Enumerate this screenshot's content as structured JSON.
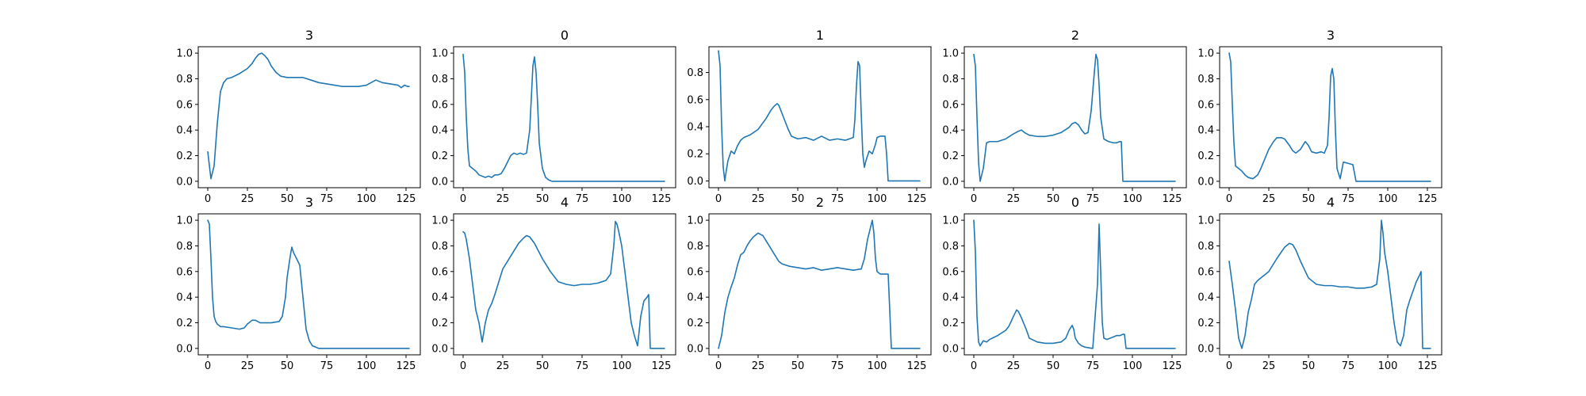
{
  "figure": {
    "background": "#ffffff",
    "line_color": "#1f77b4"
  },
  "chart_data": [
    {
      "type": "line",
      "title": "3",
      "xlim": [
        -6,
        134
      ],
      "ylim": [
        -0.05,
        1.05
      ],
      "xticks": [
        0,
        25,
        50,
        75,
        100,
        125
      ],
      "yticks": [
        0.0,
        0.2,
        0.4,
        0.6,
        0.8,
        1.0
      ],
      "series": [
        {
          "x": [
            0,
            2,
            4,
            6,
            8,
            10,
            12,
            15,
            20,
            25,
            28,
            30,
            32,
            34,
            36,
            38,
            40,
            43,
            46,
            50,
            55,
            60,
            65,
            70,
            75,
            80,
            85,
            90,
            95,
            100,
            103,
            106,
            110,
            115,
            120,
            122,
            124,
            126,
            127
          ],
          "y": [
            0.23,
            0.02,
            0.12,
            0.45,
            0.7,
            0.77,
            0.8,
            0.81,
            0.84,
            0.88,
            0.92,
            0.96,
            0.99,
            1.0,
            0.98,
            0.95,
            0.9,
            0.85,
            0.82,
            0.81,
            0.81,
            0.81,
            0.79,
            0.77,
            0.76,
            0.75,
            0.74,
            0.74,
            0.74,
            0.75,
            0.77,
            0.79,
            0.77,
            0.76,
            0.75,
            0.73,
            0.75,
            0.74,
            0.74
          ]
        }
      ]
    },
    {
      "type": "line",
      "title": "0",
      "xlim": [
        -6,
        134
      ],
      "ylim": [
        -0.05,
        1.05
      ],
      "xticks": [
        0,
        25,
        50,
        75,
        100,
        125
      ],
      "yticks": [
        0.0,
        0.2,
        0.4,
        0.6,
        0.8,
        1.0
      ],
      "series": [
        {
          "x": [
            0,
            1,
            2,
            3,
            4,
            6,
            8,
            10,
            12,
            14,
            16,
            18,
            20,
            22,
            24,
            26,
            28,
            30,
            32,
            34,
            36,
            38,
            40,
            42,
            43,
            44,
            45,
            46,
            47,
            48,
            50,
            52,
            54,
            56,
            60,
            127
          ],
          "y": [
            0.99,
            0.85,
            0.5,
            0.25,
            0.12,
            0.1,
            0.08,
            0.05,
            0.04,
            0.03,
            0.04,
            0.03,
            0.05,
            0.05,
            0.06,
            0.1,
            0.15,
            0.2,
            0.22,
            0.21,
            0.22,
            0.21,
            0.22,
            0.4,
            0.65,
            0.9,
            0.97,
            0.85,
            0.6,
            0.3,
            0.1,
            0.03,
            0.01,
            0.0,
            0.0,
            0.0
          ]
        }
      ]
    },
    {
      "type": "line",
      "title": "1",
      "xlim": [
        -6,
        134
      ],
      "ylim": [
        -0.05,
        0.99
      ],
      "xticks": [
        0,
        25,
        50,
        75,
        100,
        125
      ],
      "yticks": [
        0.0,
        0.2,
        0.4,
        0.6,
        0.8
      ],
      "series": [
        {
          "x": [
            0,
            1,
            2,
            3,
            4,
            5,
            6,
            8,
            10,
            12,
            14,
            16,
            20,
            25,
            30,
            33,
            35,
            37,
            38,
            40,
            42,
            44,
            46,
            50,
            55,
            60,
            65,
            70,
            75,
            80,
            85,
            86,
            87,
            88,
            89,
            90,
            91,
            92,
            93,
            95,
            97,
            99,
            100,
            102,
            105,
            106,
            107,
            127
          ],
          "y": [
            0.96,
            0.85,
            0.4,
            0.1,
            0.0,
            0.08,
            0.15,
            0.22,
            0.2,
            0.26,
            0.3,
            0.32,
            0.34,
            0.38,
            0.46,
            0.52,
            0.55,
            0.57,
            0.56,
            0.5,
            0.44,
            0.38,
            0.33,
            0.31,
            0.32,
            0.3,
            0.33,
            0.3,
            0.31,
            0.3,
            0.32,
            0.45,
            0.7,
            0.88,
            0.85,
            0.5,
            0.2,
            0.1,
            0.15,
            0.22,
            0.2,
            0.27,
            0.32,
            0.33,
            0.33,
            0.2,
            0.0,
            0.0
          ]
        }
      ]
    },
    {
      "type": "line",
      "title": "2",
      "xlim": [
        -6,
        134
      ],
      "ylim": [
        -0.05,
        1.05
      ],
      "xticks": [
        0,
        25,
        50,
        75,
        100,
        125
      ],
      "yticks": [
        0.0,
        0.2,
        0.4,
        0.6,
        0.8,
        1.0
      ],
      "series": [
        {
          "x": [
            0,
            1,
            2,
            3,
            4,
            5,
            6,
            7,
            8,
            10,
            15,
            20,
            25,
            28,
            30,
            32,
            35,
            40,
            45,
            50,
            55,
            60,
            62,
            64,
            66,
            68,
            70,
            72,
            74,
            76,
            77,
            78,
            79,
            80,
            82,
            85,
            88,
            90,
            92,
            93,
            94,
            127
          ],
          "y": [
            0.99,
            0.9,
            0.5,
            0.15,
            0.0,
            0.05,
            0.1,
            0.2,
            0.3,
            0.31,
            0.31,
            0.33,
            0.37,
            0.39,
            0.4,
            0.38,
            0.36,
            0.35,
            0.35,
            0.36,
            0.38,
            0.42,
            0.45,
            0.46,
            0.44,
            0.4,
            0.37,
            0.38,
            0.55,
            0.85,
            0.99,
            0.95,
            0.75,
            0.5,
            0.33,
            0.31,
            0.3,
            0.3,
            0.31,
            0.31,
            0.0,
            0.0
          ]
        }
      ]
    },
    {
      "type": "line",
      "title": "3",
      "xlim": [
        -6,
        134
      ],
      "ylim": [
        -0.05,
        1.05
      ],
      "xticks": [
        0,
        25,
        50,
        75,
        100,
        125
      ],
      "yticks": [
        0.0,
        0.2,
        0.4,
        0.6,
        0.8,
        1.0
      ],
      "series": [
        {
          "x": [
            0,
            1,
            2,
            3,
            4,
            5,
            6,
            8,
            10,
            12,
            15,
            18,
            20,
            25,
            28,
            30,
            33,
            35,
            38,
            40,
            42,
            45,
            47,
            48,
            50,
            52,
            55,
            58,
            60,
            62,
            63,
            64,
            65,
            66,
            67,
            68,
            70,
            72,
            75,
            78,
            80,
            127
          ],
          "y": [
            1.0,
            0.93,
            0.6,
            0.3,
            0.12,
            0.11,
            0.1,
            0.08,
            0.05,
            0.03,
            0.02,
            0.05,
            0.1,
            0.25,
            0.31,
            0.34,
            0.34,
            0.33,
            0.28,
            0.24,
            0.22,
            0.25,
            0.29,
            0.31,
            0.28,
            0.23,
            0.22,
            0.23,
            0.22,
            0.28,
            0.5,
            0.82,
            0.88,
            0.8,
            0.4,
            0.1,
            0.02,
            0.15,
            0.14,
            0.13,
            0.0,
            0.0
          ]
        }
      ]
    },
    {
      "type": "line",
      "title": "3",
      "xlim": [
        -6,
        134
      ],
      "ylim": [
        -0.05,
        1.05
      ],
      "xticks": [
        0,
        25,
        50,
        75,
        100,
        125
      ],
      "yticks": [
        0.0,
        0.2,
        0.4,
        0.6,
        0.8,
        1.0
      ],
      "series": [
        {
          "x": [
            0,
            1,
            2,
            3,
            4,
            5,
            6,
            8,
            10,
            15,
            20,
            23,
            25,
            28,
            30,
            33,
            35,
            40,
            45,
            47,
            49,
            50,
            52,
            53,
            54,
            56,
            58,
            60,
            62,
            64,
            66,
            68,
            70,
            75,
            127
          ],
          "y": [
            1.0,
            0.97,
            0.7,
            0.4,
            0.25,
            0.21,
            0.19,
            0.17,
            0.17,
            0.16,
            0.15,
            0.16,
            0.19,
            0.22,
            0.22,
            0.2,
            0.2,
            0.2,
            0.21,
            0.25,
            0.4,
            0.55,
            0.72,
            0.79,
            0.75,
            0.7,
            0.65,
            0.4,
            0.15,
            0.06,
            0.02,
            0.01,
            0.0,
            0.0,
            0.0
          ]
        }
      ]
    },
    {
      "type": "line",
      "title": "4",
      "xlim": [
        -6,
        134
      ],
      "ylim": [
        -0.05,
        1.05
      ],
      "xticks": [
        0,
        25,
        50,
        75,
        100,
        125
      ],
      "yticks": [
        0.0,
        0.2,
        0.4,
        0.6,
        0.8,
        1.0
      ],
      "series": [
        {
          "x": [
            0,
            1,
            2,
            4,
            6,
            8,
            10,
            12,
            14,
            16,
            18,
            20,
            25,
            30,
            35,
            38,
            40,
            42,
            45,
            50,
            55,
            60,
            65,
            70,
            75,
            80,
            85,
            90,
            93,
            95,
            96,
            97,
            98,
            100,
            102,
            104,
            106,
            108,
            110,
            112,
            114,
            116,
            117,
            118,
            120,
            125,
            127
          ],
          "y": [
            0.91,
            0.9,
            0.85,
            0.7,
            0.5,
            0.3,
            0.2,
            0.05,
            0.2,
            0.3,
            0.35,
            0.42,
            0.62,
            0.72,
            0.82,
            0.86,
            0.88,
            0.87,
            0.82,
            0.7,
            0.6,
            0.52,
            0.5,
            0.49,
            0.5,
            0.5,
            0.51,
            0.53,
            0.58,
            0.8,
            0.99,
            0.97,
            0.92,
            0.8,
            0.6,
            0.4,
            0.2,
            0.1,
            0.02,
            0.25,
            0.37,
            0.4,
            0.42,
            0.0,
            0.0,
            0.0,
            0.0
          ]
        }
      ]
    },
    {
      "type": "line",
      "title": "2",
      "xlim": [
        -6,
        134
      ],
      "ylim": [
        -0.05,
        1.05
      ],
      "xticks": [
        0,
        25,
        50,
        75,
        100,
        125
      ],
      "yticks": [
        0.0,
        0.2,
        0.4,
        0.6,
        0.8,
        1.0
      ],
      "series": [
        {
          "x": [
            0,
            2,
            4,
            6,
            8,
            10,
            12,
            14,
            16,
            18,
            20,
            22,
            25,
            28,
            30,
            32,
            35,
            38,
            40,
            45,
            50,
            55,
            60,
            65,
            70,
            75,
            80,
            85,
            90,
            92,
            94,
            96,
            97,
            98,
            99,
            100,
            102,
            105,
            107,
            108,
            109,
            110,
            127
          ],
          "y": [
            0.0,
            0.1,
            0.28,
            0.4,
            0.48,
            0.55,
            0.65,
            0.73,
            0.75,
            0.8,
            0.84,
            0.87,
            0.9,
            0.88,
            0.84,
            0.8,
            0.74,
            0.68,
            0.66,
            0.64,
            0.63,
            0.62,
            0.63,
            0.61,
            0.62,
            0.63,
            0.62,
            0.61,
            0.62,
            0.7,
            0.85,
            0.95,
            1.0,
            0.9,
            0.7,
            0.6,
            0.58,
            0.58,
            0.58,
            0.3,
            0.0,
            0.0,
            0.0
          ]
        }
      ]
    },
    {
      "type": "line",
      "title": "0",
      "xlim": [
        -6,
        134
      ],
      "ylim": [
        -0.05,
        1.05
      ],
      "xticks": [
        0,
        25,
        50,
        75,
        100,
        125
      ],
      "yticks": [
        0.0,
        0.2,
        0.4,
        0.6,
        0.8,
        1.0
      ],
      "series": [
        {
          "x": [
            0,
            1,
            2,
            3,
            4,
            6,
            8,
            10,
            15,
            20,
            22,
            25,
            27,
            28,
            30,
            33,
            35,
            40,
            45,
            50,
            55,
            58,
            60,
            62,
            63,
            64,
            66,
            68,
            70,
            75,
            78,
            79,
            80,
            81,
            82,
            84,
            86,
            88,
            90,
            92,
            94,
            95,
            96,
            127
          ],
          "y": [
            1.0,
            0.75,
            0.25,
            0.05,
            0.02,
            0.06,
            0.05,
            0.07,
            0.1,
            0.14,
            0.17,
            0.25,
            0.3,
            0.29,
            0.24,
            0.15,
            0.08,
            0.05,
            0.04,
            0.04,
            0.05,
            0.08,
            0.14,
            0.18,
            0.15,
            0.08,
            0.04,
            0.02,
            0.01,
            0.0,
            0.5,
            0.97,
            0.6,
            0.2,
            0.08,
            0.07,
            0.08,
            0.09,
            0.1,
            0.1,
            0.11,
            0.11,
            0.0,
            0.0
          ]
        }
      ]
    },
    {
      "type": "line",
      "title": "4",
      "xlim": [
        -6,
        134
      ],
      "ylim": [
        -0.05,
        1.05
      ],
      "xticks": [
        0,
        25,
        50,
        75,
        100,
        125
      ],
      "yticks": [
        0.0,
        0.2,
        0.4,
        0.6,
        0.8,
        1.0
      ],
      "series": [
        {
          "x": [
            0,
            2,
            4,
            6,
            8,
            10,
            12,
            14,
            16,
            18,
            20,
            25,
            30,
            35,
            38,
            40,
            42,
            45,
            50,
            55,
            60,
            65,
            70,
            75,
            80,
            85,
            90,
            93,
            95,
            96,
            97,
            98,
            100,
            102,
            104,
            106,
            108,
            110,
            112,
            114,
            116,
            118,
            120,
            121,
            122,
            124,
            126,
            127
          ],
          "y": [
            0.68,
            0.5,
            0.3,
            0.08,
            0.0,
            0.1,
            0.28,
            0.38,
            0.5,
            0.53,
            0.55,
            0.6,
            0.7,
            0.79,
            0.82,
            0.81,
            0.77,
            0.68,
            0.55,
            0.5,
            0.49,
            0.49,
            0.48,
            0.48,
            0.47,
            0.47,
            0.48,
            0.5,
            0.7,
            1.0,
            0.9,
            0.75,
            0.6,
            0.4,
            0.2,
            0.05,
            0.02,
            0.1,
            0.3,
            0.38,
            0.45,
            0.52,
            0.57,
            0.6,
            0.0,
            0.0,
            0.0,
            0.0
          ]
        }
      ]
    }
  ]
}
